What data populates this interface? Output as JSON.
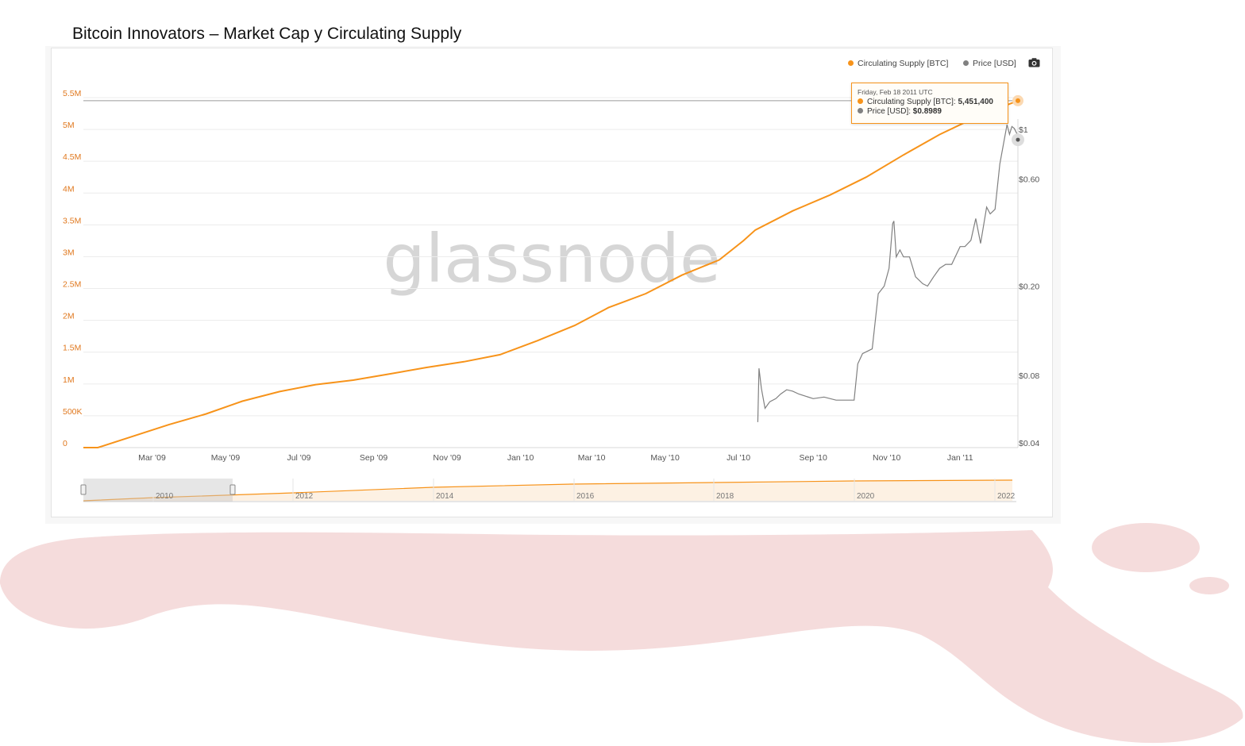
{
  "slide_title": "Bitcoin Innovators – Market Cap y Circulating Supply",
  "colors": {
    "supply": "#f7931a",
    "price": "#808080",
    "blob": "#f5dcdc",
    "watermark": "#d6d6d6"
  },
  "watermark": "glassnode",
  "legend": {
    "supply_label": "Circulating Supply [BTC]",
    "price_label": "Price [USD]"
  },
  "camera_icon": "camera-icon",
  "tooltip": {
    "date": "Friday, Feb 18 2011 UTC",
    "supply_label": "Circulating Supply [BTC]: ",
    "supply_value": "5,451,400",
    "price_label": "Price [USD]: ",
    "price_value": "$0.8989"
  },
  "navigator": {
    "labels": [
      "2010",
      "2012",
      "2014",
      "2016",
      "2018",
      "2020",
      "2022"
    ]
  },
  "chart_data": {
    "type": "line",
    "x_range": [
      "2009-01-03",
      "2011-02-18"
    ],
    "x_tick_labels": [
      "Mar '09",
      "May '09",
      "Jul '09",
      "Sep '09",
      "Nov '09",
      "Jan '10",
      "Mar '10",
      "May '10",
      "Jul '10",
      "Sep '10",
      "Nov '10",
      "Jan '11"
    ],
    "y_left": {
      "ticks": [
        "0",
        "500K",
        "1M",
        "1.5M",
        "2M",
        "2.5M",
        "3M",
        "3.5M",
        "4M",
        "4.5M",
        "5M",
        "5.5M"
      ],
      "range": [
        0,
        5500000
      ]
    },
    "y_right": {
      "scale": "log",
      "ticks": [
        "$0.04",
        "$0.08",
        "$0.20",
        "$0.60",
        "$1"
      ],
      "range": [
        0.04,
        1.1
      ]
    },
    "grid": true,
    "legend_position": "top-right",
    "series": [
      {
        "name": "Circulating Supply [BTC]",
        "axis": "left",
        "points": [
          [
            "2009-01-03",
            0
          ],
          [
            "2009-01-15",
            0
          ],
          [
            "2009-02-15",
            190000
          ],
          [
            "2009-03-15",
            360000
          ],
          [
            "2009-04-15",
            530000
          ],
          [
            "2009-05-15",
            730000
          ],
          [
            "2009-06-15",
            880000
          ],
          [
            "2009-07-15",
            990000
          ],
          [
            "2009-08-15",
            1060000
          ],
          [
            "2009-09-15",
            1160000
          ],
          [
            "2009-10-15",
            1260000
          ],
          [
            "2009-11-15",
            1350000
          ],
          [
            "2009-12-15",
            1460000
          ],
          [
            "2010-01-15",
            1680000
          ],
          [
            "2010-02-15",
            1920000
          ],
          [
            "2010-03-15",
            2200000
          ],
          [
            "2010-04-15",
            2420000
          ],
          [
            "2010-05-15",
            2710000
          ],
          [
            "2010-06-15",
            2950000
          ],
          [
            "2010-07-05",
            3250000
          ],
          [
            "2010-07-15",
            3420000
          ],
          [
            "2010-08-15",
            3720000
          ],
          [
            "2010-09-15",
            3970000
          ],
          [
            "2010-10-15",
            4250000
          ],
          [
            "2010-11-15",
            4600000
          ],
          [
            "2010-12-15",
            4920000
          ],
          [
            "2011-01-15",
            5200000
          ],
          [
            "2011-02-18",
            5451400
          ]
        ]
      },
      {
        "name": "Price [USD]",
        "axis": "right",
        "points": [
          [
            "2010-07-17",
            0.0495
          ],
          [
            "2010-07-18",
            0.086
          ],
          [
            "2010-07-20",
            0.07
          ],
          [
            "2010-07-23",
            0.057
          ],
          [
            "2010-07-27",
            0.061
          ],
          [
            "2010-08-01",
            0.063
          ],
          [
            "2010-08-05",
            0.066
          ],
          [
            "2010-08-10",
            0.069
          ],
          [
            "2010-08-15",
            0.068
          ],
          [
            "2010-08-20",
            0.066
          ],
          [
            "2010-09-01",
            0.063
          ],
          [
            "2010-09-10",
            0.064
          ],
          [
            "2010-09-20",
            0.062
          ],
          [
            "2010-09-30",
            0.062
          ],
          [
            "2010-10-05",
            0.062
          ],
          [
            "2010-10-08",
            0.09
          ],
          [
            "2010-10-12",
            0.1
          ],
          [
            "2010-10-20",
            0.105
          ],
          [
            "2010-10-25",
            0.185
          ],
          [
            "2010-10-30",
            0.2
          ],
          [
            "2010-11-03",
            0.24
          ],
          [
            "2010-11-06",
            0.38
          ],
          [
            "2010-11-07",
            0.39
          ],
          [
            "2010-11-09",
            0.27
          ],
          [
            "2010-11-12",
            0.29
          ],
          [
            "2010-11-15",
            0.27
          ],
          [
            "2010-11-20",
            0.27
          ],
          [
            "2010-11-25",
            0.22
          ],
          [
            "2010-12-01",
            0.205
          ],
          [
            "2010-12-05",
            0.2
          ],
          [
            "2010-12-10",
            0.22
          ],
          [
            "2010-12-15",
            0.24
          ],
          [
            "2010-12-20",
            0.25
          ],
          [
            "2010-12-25",
            0.25
          ],
          [
            "2011-01-01",
            0.3
          ],
          [
            "2011-01-05",
            0.3
          ],
          [
            "2011-01-10",
            0.32
          ],
          [
            "2011-01-14",
            0.4
          ],
          [
            "2011-01-18",
            0.31
          ],
          [
            "2011-01-23",
            0.45
          ],
          [
            "2011-01-26",
            0.42
          ],
          [
            "2011-01-30",
            0.44
          ],
          [
            "2011-02-03",
            0.7
          ],
          [
            "2011-02-06",
            0.86
          ],
          [
            "2011-02-09",
            1.05
          ],
          [
            "2011-02-11",
            0.95
          ],
          [
            "2011-02-13",
            1.03
          ],
          [
            "2011-02-15",
            1.01
          ],
          [
            "2011-02-17",
            0.96
          ],
          [
            "2011-02-18",
            0.8989
          ]
        ]
      }
    ]
  }
}
